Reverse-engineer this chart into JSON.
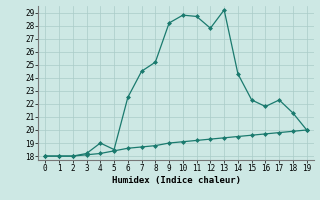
{
  "xlabel": "Humidex (Indice chaleur)",
  "ylabel": "",
  "x": [
    0,
    1,
    2,
    3,
    4,
    5,
    6,
    7,
    8,
    9,
    10,
    11,
    12,
    13,
    14,
    15,
    16,
    17,
    18,
    19
  ],
  "line1": [
    18,
    18,
    18,
    18.2,
    19.0,
    18.5,
    22.5,
    24.5,
    25.2,
    28.2,
    28.8,
    28.7,
    27.8,
    29.2,
    24.3,
    22.3,
    21.8,
    22.3,
    21.3,
    20.0
  ],
  "line2": [
    18,
    18,
    18,
    18.1,
    18.2,
    18.4,
    18.6,
    18.7,
    18.8,
    19.0,
    19.1,
    19.2,
    19.3,
    19.4,
    19.5,
    19.6,
    19.7,
    19.8,
    19.9,
    20.0
  ],
  "line_color": "#1a7a6e",
  "bg_color": "#cde8e4",
  "grid_color": "#aaccc8",
  "ylim": [
    18,
    29
  ],
  "yticks": [
    18,
    19,
    20,
    21,
    22,
    23,
    24,
    25,
    26,
    27,
    28,
    29
  ],
  "xticks": [
    0,
    1,
    2,
    3,
    4,
    5,
    6,
    7,
    8,
    9,
    10,
    11,
    12,
    13,
    14,
    15,
    16,
    17,
    18,
    19
  ],
  "marker": "D",
  "markersize": 2.0,
  "linewidth": 0.9,
  "label_fontsize": 6.5,
  "tick_fontsize": 5.5
}
